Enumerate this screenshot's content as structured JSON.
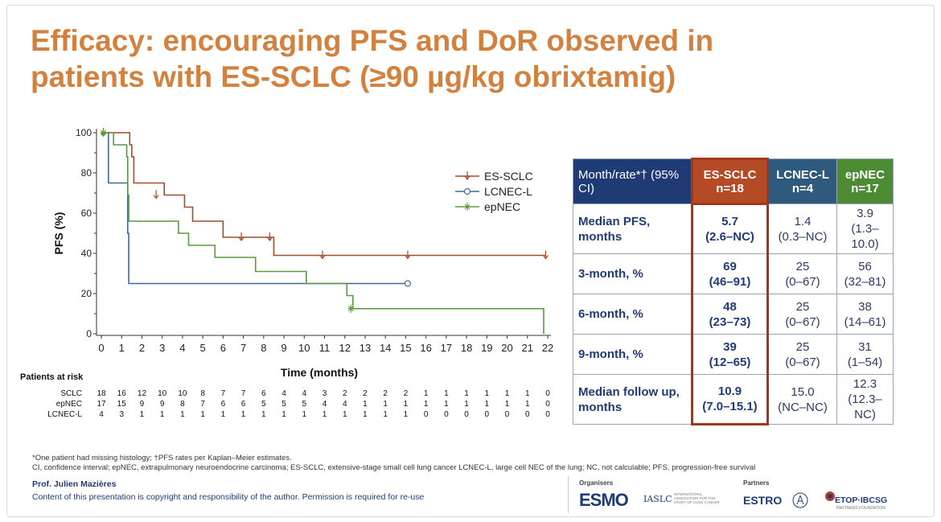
{
  "title": "Efficacy: encouraging PFS and DoR observed in patients with ES-SCLC (≥90 µg/kg obrixtamig)",
  "colors": {
    "title": "#d2813f",
    "es_sclc": "#a24d2c",
    "lcnec_l": "#3d6b99",
    "epnec": "#5a9a3e",
    "table_header_label": "#1f3b76",
    "table_header_sclc": "#b54a26",
    "table_header_lcnec": "#2e5a7d",
    "table_header_epnec": "#4d8a34"
  },
  "chart_data": {
    "type": "line",
    "subtype": "kaplan-meier step",
    "ylabel": "PFS (%)",
    "xlabel": "Time (months)",
    "xlim": [
      0,
      22
    ],
    "ylim": [
      0,
      100
    ],
    "yticks": [
      0,
      20,
      40,
      60,
      80,
      100
    ],
    "xticks": [
      0,
      1,
      2,
      3,
      4,
      5,
      6,
      7,
      8,
      9,
      10,
      11,
      12,
      13,
      14,
      15,
      16,
      17,
      18,
      19,
      20,
      21,
      22
    ],
    "legend": [
      "ES-SCLC",
      "LCNEC-L",
      "epNEC"
    ],
    "legend_position": "top-right",
    "series": [
      {
        "name": "ES-SCLC",
        "color": "#a24d2c",
        "marker": "down-arrow",
        "steps": [
          [
            0,
            100
          ],
          [
            1.3,
            100
          ],
          [
            1.4,
            94
          ],
          [
            1.5,
            88
          ],
          [
            1.6,
            75
          ],
          [
            2.9,
            75
          ],
          [
            3.1,
            69
          ],
          [
            4.0,
            69
          ],
          [
            4.1,
            63
          ],
          [
            4.4,
            63
          ],
          [
            4.5,
            56
          ],
          [
            5.9,
            56
          ],
          [
            6.0,
            48
          ],
          [
            8.3,
            48
          ],
          [
            8.5,
            39
          ],
          [
            21.9,
            39
          ]
        ],
        "censored": [
          [
            0.1,
            100
          ],
          [
            2.7,
            69
          ],
          [
            6.9,
            48
          ],
          [
            8.3,
            48
          ],
          [
            10.9,
            39
          ],
          [
            15.1,
            39
          ],
          [
            21.9,
            39
          ]
        ]
      },
      {
        "name": "LCNEC-L",
        "color": "#3d6b99",
        "marker": "circle",
        "steps": [
          [
            0,
            100
          ],
          [
            0.3,
            100
          ],
          [
            0.35,
            75
          ],
          [
            1.2,
            75
          ],
          [
            1.3,
            50
          ],
          [
            1.35,
            25
          ],
          [
            15.1,
            25
          ]
        ],
        "censored": [
          [
            15.1,
            25
          ]
        ]
      },
      {
        "name": "epNEC",
        "color": "#5a9a3e",
        "marker": "asterisk",
        "steps": [
          [
            0,
            100
          ],
          [
            0.5,
            100
          ],
          [
            0.6,
            94
          ],
          [
            1.2,
            94
          ],
          [
            1.25,
            88
          ],
          [
            1.3,
            69
          ],
          [
            1.35,
            56
          ],
          [
            3.7,
            56
          ],
          [
            3.8,
            50
          ],
          [
            4.2,
            50
          ],
          [
            4.3,
            44
          ],
          [
            5.5,
            44
          ],
          [
            5.6,
            38
          ],
          [
            7.5,
            38
          ],
          [
            7.6,
            31
          ],
          [
            10.0,
            31
          ],
          [
            10.1,
            25
          ],
          [
            12.0,
            25
          ],
          [
            12.1,
            19
          ],
          [
            12.3,
            19
          ],
          [
            12.4,
            12.5
          ],
          [
            21.7,
            12.5
          ],
          [
            21.8,
            0
          ]
        ],
        "censored": [
          [
            0.1,
            100
          ],
          [
            12.3,
            12.5
          ]
        ]
      }
    ],
    "risk_table": {
      "title": "Patients at risk",
      "rows": [
        {
          "label": "SCLC",
          "values": [
            "18",
            "16",
            "12",
            "10",
            "10",
            "8",
            "7",
            "7",
            "6",
            "4",
            "4",
            "3",
            "2",
            "2",
            "2",
            "2",
            "1",
            "1",
            "1",
            "1",
            "1",
            "1",
            "0"
          ]
        },
        {
          "label": "epNEC",
          "values": [
            "17",
            "15",
            "9",
            "9",
            "8",
            "7",
            "6",
            "6",
            "5",
            "5",
            "5",
            "4",
            "4",
            "1",
            "1",
            "1",
            "1",
            "1",
            "1",
            "1",
            "1",
            "1",
            "0"
          ]
        },
        {
          "label": "LCNEC-L",
          "values": [
            "4",
            "3",
            "1",
            "1",
            "1",
            "1",
            "1",
            "1",
            "1",
            "1",
            "1",
            "1",
            "1",
            "1",
            "1",
            "1",
            "0",
            "0",
            "0",
            "0",
            "0",
            "0",
            "0"
          ]
        }
      ]
    }
  },
  "table": {
    "header": {
      "label": "Month/rate*† (95% CI)",
      "cols": [
        {
          "name": "ES-SCLC",
          "n": "n=18"
        },
        {
          "name": "LCNEC-L",
          "n": "n=4"
        },
        {
          "name": "epNEC",
          "n": "n=17"
        }
      ]
    },
    "rows": [
      {
        "label": "Median PFS, months",
        "sclc": [
          "5.7",
          "(2.6–NC)"
        ],
        "lcnec": [
          "1.4",
          "(0.3–NC)"
        ],
        "epnec": [
          "3.9",
          "(1.3–10.0)"
        ]
      },
      {
        "label": "3-month, %",
        "sclc": [
          "69",
          "(46–91)"
        ],
        "lcnec": [
          "25",
          "(0–67)"
        ],
        "epnec": [
          "56",
          "(32–81)"
        ]
      },
      {
        "label": "6-month, %",
        "sclc": [
          "48",
          "(23–73)"
        ],
        "lcnec": [
          "25",
          "(0–67)"
        ],
        "epnec": [
          "38",
          "(14–61)"
        ]
      },
      {
        "label": "9-month, %",
        "sclc": [
          "39",
          "(12–65)"
        ],
        "lcnec": [
          "25",
          "(0–67)"
        ],
        "epnec": [
          "31",
          "(1–54)"
        ]
      },
      {
        "label": "Median follow up, months",
        "sclc": [
          "10.9",
          "(7.0–15.1)"
        ],
        "lcnec": [
          "15.0",
          "(NC–NC)"
        ],
        "epnec": [
          "12.3",
          "(12.3–NC)"
        ]
      }
    ]
  },
  "footnotes": {
    "line1": "*One patient had missing histology; †PFS rates per Kaplan–Meier estimates.",
    "line2": "CI, confidence interval; epNEC, extrapulmonary neuroendocrine carcinoma; ES-SCLC, extensive-stage small cell lung cancer LCNEC-L, large cell NEC of the lung; NC, not calculable; PFS, progression-free survival"
  },
  "presenter": "Prof. Julien Mazières",
  "copyright": "Content of this presentation is copyright and responsibility of the author. Permission is required for re-use",
  "footer": {
    "organisers_label": "Organisers",
    "partners_label": "Partners",
    "esmo": "ESMO",
    "iaslc": "IASLC",
    "iaslc_sub": "INTERNATIONAL ASSOCIATION FOR THE STUDY OF LUNG CANCER",
    "estro": "ESTRO",
    "etop": "ETOP·IBCSG",
    "etop_sub": "PARTNERS FOUNDATION"
  }
}
